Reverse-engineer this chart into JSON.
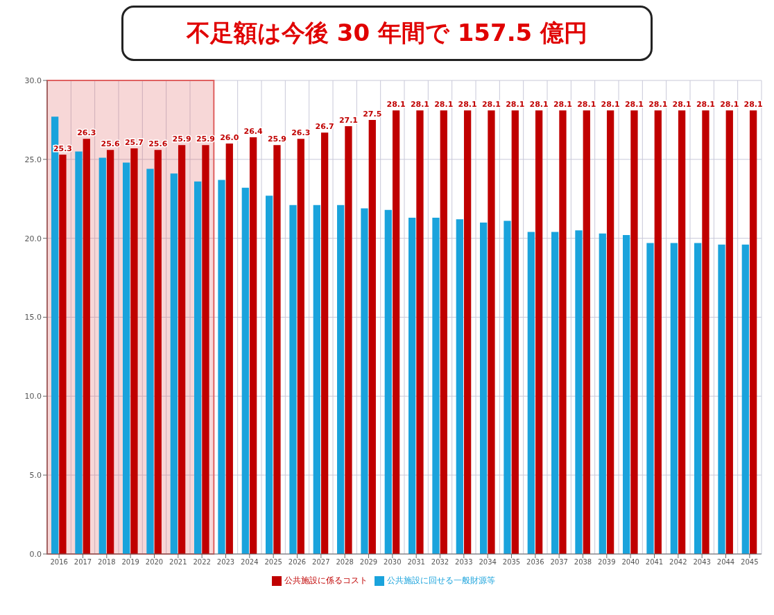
{
  "chart_data": {
    "type": "bar",
    "annotations": [
      "不足額は今後 30 年間で 157.5 億円"
    ],
    "categories": [
      "2016",
      "2017",
      "2018",
      "2019",
      "2020",
      "2021",
      "2022",
      "2023",
      "2024",
      "2025",
      "2026",
      "2027",
      "2028",
      "2029",
      "2030",
      "2031",
      "2032",
      "2033",
      "2034",
      "2035",
      "2036",
      "2037",
      "2038",
      "2039",
      "2040",
      "2041",
      "2042",
      "2043",
      "2044",
      "2045"
    ],
    "series": [
      {
        "name": "公共施設に回せる一般財源等",
        "color": "#1aa3dc",
        "values": [
          27.7,
          25.5,
          25.1,
          24.8,
          24.4,
          24.1,
          23.6,
          23.7,
          23.2,
          22.7,
          22.1,
          22.1,
          22.1,
          21.9,
          21.8,
          21.3,
          21.3,
          21.2,
          21.0,
          21.1,
          20.4,
          20.4,
          20.5,
          20.3,
          20.2,
          19.7,
          19.7,
          19.7,
          19.6,
          19.6
        ]
      },
      {
        "name": "公共施設に係るコスト",
        "color": "#c00000",
        "values": [
          25.3,
          26.3,
          25.6,
          25.7,
          25.6,
          25.9,
          25.9,
          26.0,
          26.4,
          25.9,
          26.3,
          26.7,
          27.1,
          27.5,
          28.1,
          28.1,
          28.1,
          28.1,
          28.1,
          28.1,
          28.1,
          28.1,
          28.1,
          28.1,
          28.1,
          28.1,
          28.1,
          28.1,
          28.1,
          28.1
        ],
        "value_labels": [
          "25.3",
          "26.3",
          "25.6",
          "25.7",
          "25.6",
          "25.9",
          "25.9",
          "26.0",
          "26.4",
          "25.9",
          "26.3",
          "26.7",
          "27.1",
          "27.5",
          "28.1",
          "28.1",
          "28.1",
          "28.1",
          "28.1",
          "28.1",
          "28.1",
          "28.1",
          "28.1",
          "28.1",
          "28.1",
          "28.1",
          "28.1",
          "28.1",
          "28.1",
          "28.1"
        ]
      }
    ],
    "ylim": [
      0,
      30
    ],
    "yticks": [
      {
        "value": 0,
        "label": "0.0"
      },
      {
        "value": 5,
        "label": "5.0"
      },
      {
        "value": 10,
        "label": "10.0"
      },
      {
        "value": 15,
        "label": "15.0"
      },
      {
        "value": 20,
        "label": "20.0"
      },
      {
        "value": 25,
        "label": "25.0"
      },
      {
        "value": 30,
        "label": "30.0"
      }
    ],
    "bands": [
      {
        "axis": "x",
        "from": "2016",
        "to": "2022",
        "color": "#e06060"
      }
    ],
    "grid": true,
    "legend": "bottom"
  }
}
